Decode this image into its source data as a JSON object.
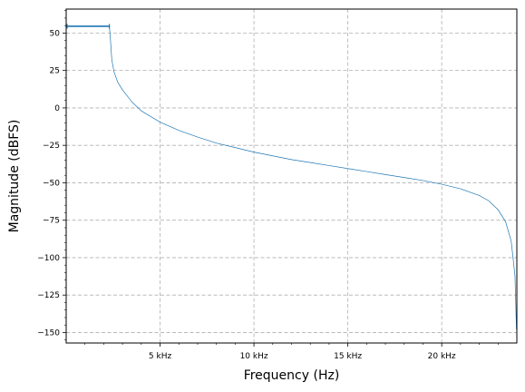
{
  "chart_data": {
    "type": "line",
    "title": "",
    "xlabel": "Frequency (Hz)",
    "ylabel": "Magnitude (dBFS)",
    "xlim": [
      0,
      24000
    ],
    "ylim": [
      -157,
      66
    ],
    "grid": true,
    "x_ticks": [
      {
        "value": 5000,
        "label": "5 kHz"
      },
      {
        "value": 10000,
        "label": "10 kHz"
      },
      {
        "value": 15000,
        "label": "15 kHz"
      },
      {
        "value": 20000,
        "label": "20 kHz"
      }
    ],
    "y_ticks": [
      {
        "value": 50,
        "label": "50"
      },
      {
        "value": 25,
        "label": "25"
      },
      {
        "value": 0,
        "label": "0"
      },
      {
        "value": -25,
        "label": "−25"
      },
      {
        "value": -50,
        "label": "−50"
      },
      {
        "value": -75,
        "label": "−75"
      },
      {
        "value": -100,
        "label": "−100"
      },
      {
        "value": -125,
        "label": "−125"
      },
      {
        "value": -150,
        "label": "−150"
      }
    ],
    "series": [
      {
        "color": "#1f77b4",
        "x": [
          0,
          2300,
          2360,
          2430,
          2550,
          2750,
          3000,
          3500,
          4000,
          5000,
          6000,
          7000,
          8000,
          9000,
          10000,
          11000,
          12000,
          13000,
          14000,
          15000,
          16000,
          17000,
          18000,
          19000,
          20000,
          21000,
          22000,
          22500,
          23000,
          23400,
          23700,
          23900,
          23980
        ],
        "y": [
          54.5,
          54.5,
          45,
          32,
          24,
          17,
          12,
          4,
          -2,
          -9.5,
          -15,
          -19.5,
          -23.5,
          -26.5,
          -29.5,
          -32,
          -34.5,
          -36.5,
          -38.5,
          -40.5,
          -42.5,
          -44.5,
          -46.5,
          -48.5,
          -51,
          -54,
          -58.5,
          -62,
          -68,
          -76,
          -89,
          -112,
          -148
        ]
      }
    ]
  }
}
